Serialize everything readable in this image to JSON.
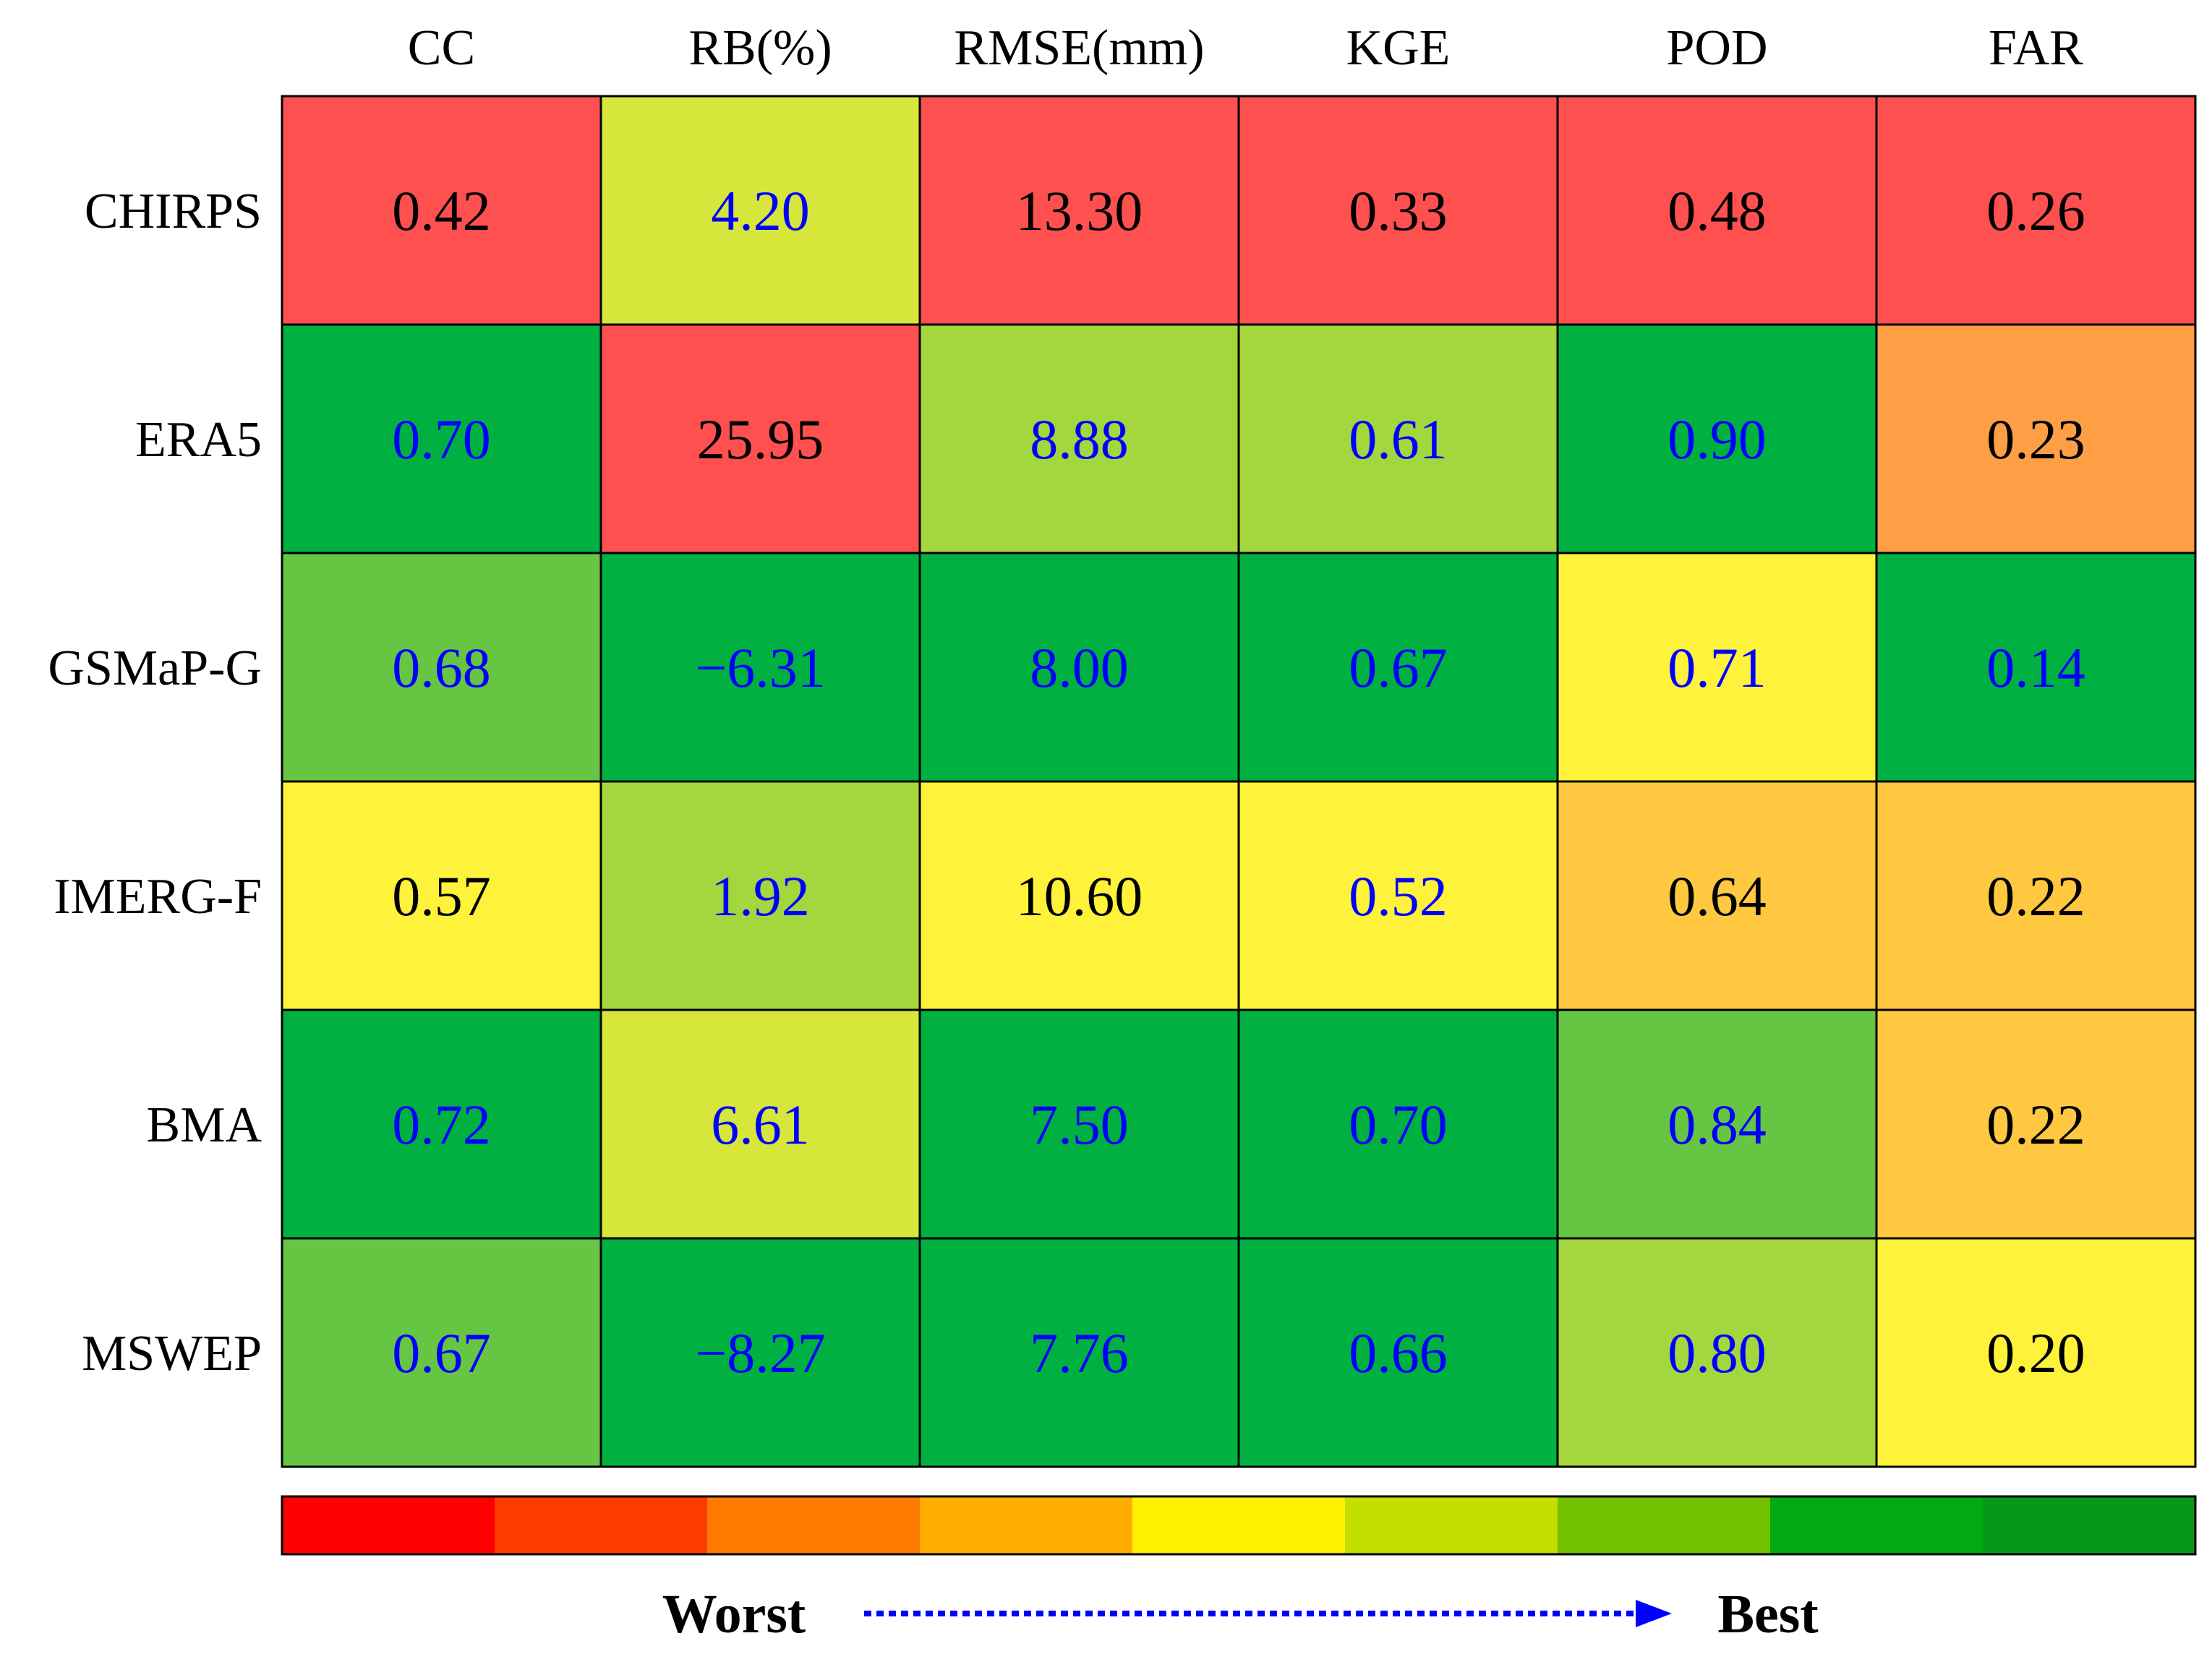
{
  "chart_data": {
    "type": "heatmap",
    "columns": [
      "CC",
      "RB(%)",
      "RMSE(mm)",
      "KGE",
      "POD",
      "FAR"
    ],
    "rows": [
      "CHIRPS",
      "ERA5",
      "GSMaP-G",
      "IMERG-F",
      "BMA",
      "MSWEP"
    ],
    "cells": [
      [
        {
          "label": "0.42",
          "color": "#ff5050",
          "text_color": "#000000"
        },
        {
          "label": "4.20",
          "color": "#d6e63a",
          "text_color": "#0000ff"
        },
        {
          "label": "13.30",
          "color": "#ff5050",
          "text_color": "#000000"
        },
        {
          "label": "0.33",
          "color": "#ff5050",
          "text_color": "#000000"
        },
        {
          "label": "0.48",
          "color": "#ff5050",
          "text_color": "#000000"
        },
        {
          "label": "0.26",
          "color": "#ff5050",
          "text_color": "#000000"
        }
      ],
      [
        {
          "label": "0.70",
          "color": "#00b142",
          "text_color": "#0000ff"
        },
        {
          "label": "25.95",
          "color": "#ff5050",
          "text_color": "#000000"
        },
        {
          "label": "8.88",
          "color": "#a4d63d",
          "text_color": "#0000ff"
        },
        {
          "label": "0.61",
          "color": "#a4d63d",
          "text_color": "#0000ff"
        },
        {
          "label": "0.90",
          "color": "#00b142",
          "text_color": "#0000ff"
        },
        {
          "label": "0.23",
          "color": "#ff9f45",
          "text_color": "#000000"
        }
      ],
      [
        {
          "label": "0.68",
          "color": "#66c543",
          "text_color": "#0000ff"
        },
        {
          "label": "−6.31",
          "color": "#00b142",
          "text_color": "#0000ff"
        },
        {
          "label": "8.00",
          "color": "#00b142",
          "text_color": "#0000ff"
        },
        {
          "label": "0.67",
          "color": "#00b142",
          "text_color": "#0000ff"
        },
        {
          "label": "0.71",
          "color": "#fff23a",
          "text_color": "#0000ff"
        },
        {
          "label": "0.14",
          "color": "#00b142",
          "text_color": "#0000ff"
        }
      ],
      [
        {
          "label": "0.57",
          "color": "#fff23a",
          "text_color": "#000000"
        },
        {
          "label": "1.92",
          "color": "#a4d63d",
          "text_color": "#0000ff"
        },
        {
          "label": "10.60",
          "color": "#fff23a",
          "text_color": "#000000"
        },
        {
          "label": "0.52",
          "color": "#fff23a",
          "text_color": "#0000ff"
        },
        {
          "label": "0.64",
          "color": "#ffc840",
          "text_color": "#000000"
        },
        {
          "label": "0.22",
          "color": "#ffc840",
          "text_color": "#000000"
        }
      ],
      [
        {
          "label": "0.72",
          "color": "#00b142",
          "text_color": "#0000ff"
        },
        {
          "label": "6.61",
          "color": "#d6e63a",
          "text_color": "#0000ff"
        },
        {
          "label": "7.50",
          "color": "#00b142",
          "text_color": "#0000ff"
        },
        {
          "label": "0.70",
          "color": "#00b142",
          "text_color": "#0000ff"
        },
        {
          "label": "0.84",
          "color": "#66c543",
          "text_color": "#0000ff"
        },
        {
          "label": "0.22",
          "color": "#ffc840",
          "text_color": "#000000"
        }
      ],
      [
        {
          "label": "0.67",
          "color": "#66c543",
          "text_color": "#0000ff"
        },
        {
          "label": "−8.27",
          "color": "#00b142",
          "text_color": "#0000ff"
        },
        {
          "label": "7.76",
          "color": "#00b142",
          "text_color": "#0000ff"
        },
        {
          "label": "0.66",
          "color": "#00b142",
          "text_color": "#0000ff"
        },
        {
          "label": "0.80",
          "color": "#a4d63d",
          "text_color": "#0000ff"
        },
        {
          "label": "0.20",
          "color": "#fff23a",
          "text_color": "#000000"
        }
      ]
    ],
    "legend": {
      "colors": [
        "#ff0000",
        "#ff3a00",
        "#ff7a00",
        "#ffad00",
        "#fff000",
        "#c4de00",
        "#72c000",
        "#00aa10",
        "#089818"
      ],
      "worst_label": "Worst",
      "best_label": "Best",
      "arrow_color": "#0000ff"
    }
  }
}
